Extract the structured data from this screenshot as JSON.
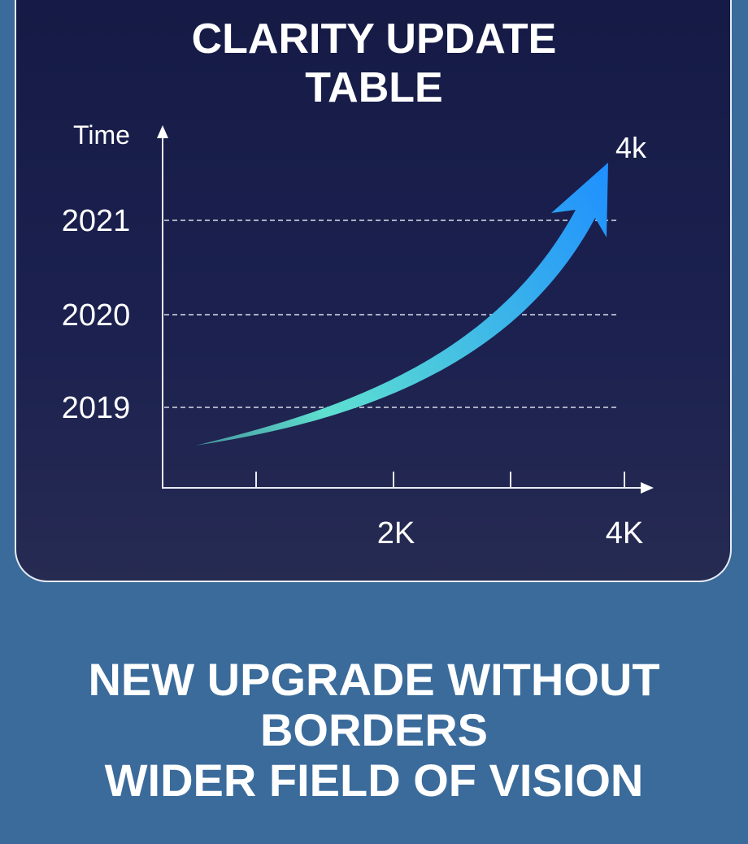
{
  "header": {
    "title_line1": "CLARITY UPDATE",
    "title_line2": "TABLE"
  },
  "chart_data": {
    "type": "line",
    "title": "CLARITY UPDATE TABLE",
    "ylabel": "Time",
    "y_ticks": [
      "2019",
      "2020",
      "2021"
    ],
    "x_ticks": [
      "2K",
      "4K"
    ],
    "grid": "horizontal dashed",
    "annotation": "4k",
    "series": [
      {
        "color_start": "#5ee0d0",
        "color_end": "#1e8fff"
      }
    ]
  },
  "footer": {
    "line1": "NEW UPGRADE WITHOUT",
    "line2": "BORDERS",
    "line3": "WIDER FIELD OF VISION"
  },
  "colors": {
    "background": "#3a6b9b",
    "panel": "#1a1f4c",
    "text": "#ffffff"
  }
}
